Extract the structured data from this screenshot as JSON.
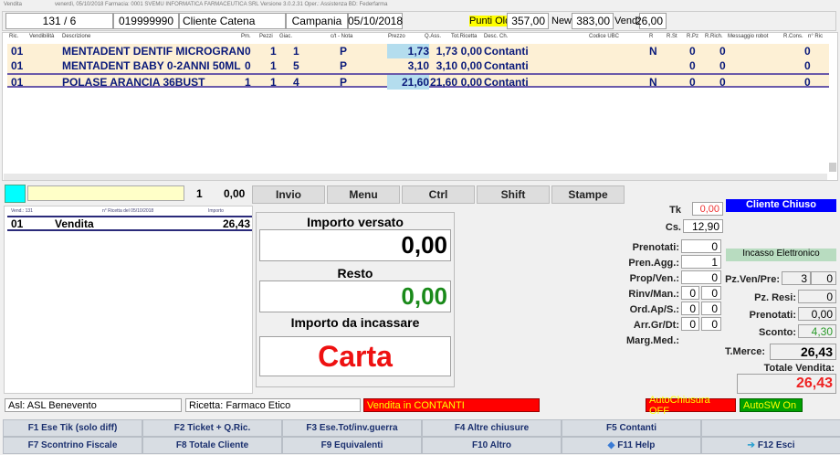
{
  "titlebar": {
    "app": "Vendita",
    "info": "venerdì, 05/10/2018   Farmacia: 0001 SVEMU INFORMATICA FARMACEUTICA SRL  Versione 3.0.2.31  Oper.: Assistenza     BD: Federfarma"
  },
  "info": {
    "sale": "131 / 6",
    "code": "019999990",
    "client": "Cliente Catena",
    "region": "Campania",
    "date": "05/10/2018",
    "punti_old_label": "Punti Old:",
    "punti_old": "357,00",
    "new_label": "New:",
    "new": "383,00",
    "vend_label": "Vend:",
    "vend": "26,00"
  },
  "grid": {
    "headers": [
      "Ric.",
      "Vendibilità",
      "Descrizione",
      "Pm.",
      "Pezzi",
      "Giac.",
      "c/t - Nota",
      "Prezzo",
      "Q.Ass.",
      "Tot.Ricetta",
      "Desc. Ch.",
      "Codice UBC",
      "R",
      "R.St",
      "R.Pz",
      "R.Rich.",
      "Messaggio robot",
      "R.Cons.",
      "n° Ric"
    ],
    "rows": [
      {
        "ric": "01",
        "desc": "MENTADENT DENTIF MICROGRAN",
        "pm": "0",
        "pezzi": "1",
        "giac": "1",
        "nota": "P",
        "prezzo": "1,73",
        "qass": "1,73",
        "tot": "0,00",
        "descch": "Contanti",
        "r": "N",
        "rpz": "0",
        "rrich": "0",
        "rcons": "0"
      },
      {
        "ric": "01",
        "desc": "MENTADENT BABY 0-2ANNI 50ML",
        "pm": "0",
        "pezzi": "1",
        "giac": "5",
        "nota": "P",
        "prezzo": "3,10",
        "qass": "3,10",
        "tot": "0,00",
        "descch": "Contanti",
        "r": "",
        "rpz": "0",
        "rrich": "0",
        "rcons": "0"
      },
      {
        "ric": "01",
        "desc": "POLASE ARANCIA 36BUST",
        "pm": "1",
        "pezzi": "1",
        "giac": "4",
        "nota": "P",
        "prezzo": "21,60",
        "qass": "21,60",
        "tot": "0,00",
        "descch": "Contanti",
        "r": "N",
        "rpz": "0",
        "rrich": "0",
        "rcons": "0"
      }
    ]
  },
  "entry": {
    "qty": "1",
    "amount": "0,00"
  },
  "buttons": [
    "Invio",
    "Menu",
    "Ctrl",
    "Shift",
    "Stampe"
  ],
  "sales": {
    "headers": [
      "Vend.: 131",
      "n° Ricetta del 05/10/2018",
      "Importo"
    ],
    "row": {
      "num": "01",
      "label": "Vendita",
      "amount": "26,43"
    }
  },
  "payment": {
    "versato_label": "Importo versato",
    "versato": "0,00",
    "resto_label": "Resto",
    "resto": "0,00",
    "incassare_label": "Importo da incassare",
    "incassare": "Carta"
  },
  "right": {
    "tk_label": "Tk",
    "tk": "0,00",
    "cs_label": "Cs.",
    "cs": "12,90",
    "prenotati_label": "Prenotati:",
    "prenotati": "0",
    "prenagg_label": "Pren.Agg.:",
    "prenagg": "1",
    "propven_label": "Prop/Ven.:",
    "propven": "0",
    "rinv_label": "Rinv/Man.:",
    "rinv": [
      "0",
      "0"
    ],
    "ord_label": "Ord.Ap/S.:",
    "ord": [
      "0",
      "0"
    ],
    "arr_label": "Arr.Gr/Dt:",
    "arr": [
      "0",
      "0"
    ],
    "marg_label": "Marg.Med.:",
    "cliente_chiuso": "Cliente Chiuso",
    "incasso": "Incasso Elettronico",
    "pzven_label": "Pz.Ven/Pre:",
    "pzven": [
      "3",
      "0"
    ],
    "pzresi_label": "Pz. Resi:",
    "pzresi": "0",
    "pren2_label": "Prenotati:",
    "pren2": "0,00",
    "sconto_label": "Sconto:",
    "sconto": "4,30",
    "tmerce_label": "T.Merce:",
    "tmerce": "26,43",
    "totale_label": "Totale Vendita:",
    "totale": "26,43"
  },
  "status": {
    "asl": "Asl: ASL Benevento",
    "ricetta": "Ricetta: Farmaco Etico",
    "vendita": "Vendita in CONTANTI",
    "autochiusura": "AutoChiusura OFF",
    "autosw": "AutoSW On"
  },
  "fkeys": [
    "F1 Ese Tik (solo diff)",
    "F2 Ticket + Q.Ric.",
    "F3 Ese.Tot/inv.guerra",
    "F4 Altre chiusure",
    "F5 Contanti",
    "",
    "F7 Scontrino Fiscale",
    "F8 Totale Cliente",
    "F9 Equivalenti",
    "F10 Altro",
    "F11 Help",
    "F12 Esci"
  ]
}
